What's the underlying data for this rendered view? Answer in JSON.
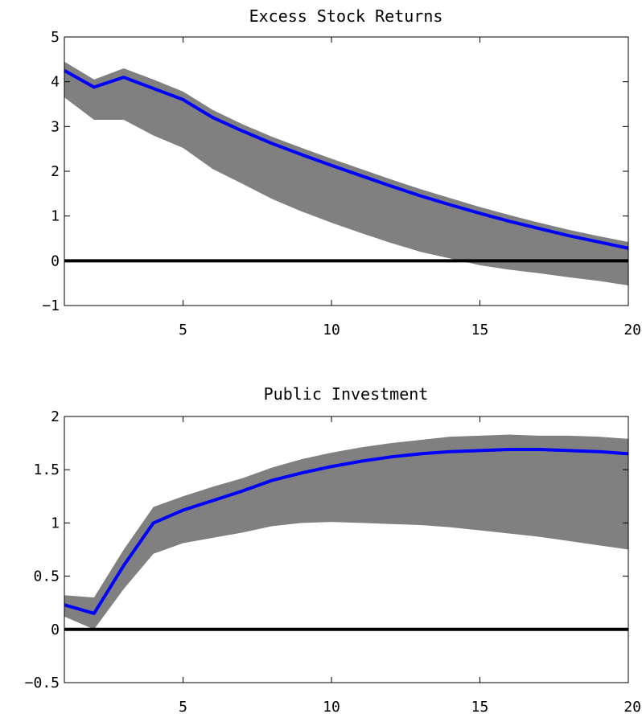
{
  "chart_data": [
    {
      "type": "line",
      "title": "Excess Stock Returns",
      "xlabel": "",
      "ylabel": "",
      "xlim": [
        1,
        20
      ],
      "ylim": [
        -1,
        5
      ],
      "xticks": [
        5,
        10,
        15,
        20
      ],
      "xtick_labels": [
        "5",
        "10",
        "15",
        "20"
      ],
      "yticks": [
        -1,
        0,
        1,
        2,
        3,
        4,
        5
      ],
      "ytick_labels": [
        "−1",
        "0",
        "1",
        "2",
        "3",
        "4",
        "5"
      ],
      "grid": false,
      "x": [
        1,
        2,
        3,
        4,
        5,
        6,
        7,
        8,
        9,
        10,
        11,
        12,
        13,
        14,
        15,
        16,
        17,
        18,
        19,
        20
      ],
      "series": [
        {
          "role": "point-estimate",
          "color": "#0000ff",
          "values": [
            4.25,
            3.88,
            4.1,
            3.85,
            3.6,
            3.2,
            2.9,
            2.62,
            2.37,
            2.13,
            1.9,
            1.67,
            1.45,
            1.25,
            1.06,
            0.88,
            0.72,
            0.56,
            0.42,
            0.28
          ]
        }
      ],
      "band": {
        "color": "#808080",
        "upper": [
          4.45,
          4.05,
          4.3,
          4.05,
          3.78,
          3.37,
          3.05,
          2.77,
          2.52,
          2.28,
          2.05,
          1.82,
          1.6,
          1.4,
          1.2,
          1.02,
          0.85,
          0.69,
          0.55,
          0.42
        ],
        "lower": [
          3.65,
          3.15,
          3.15,
          2.8,
          2.52,
          2.05,
          1.72,
          1.38,
          1.1,
          0.85,
          0.62,
          0.4,
          0.2,
          0.05,
          -0.1,
          -0.2,
          -0.28,
          -0.37,
          -0.45,
          -0.55
        ]
      },
      "zero_line": {
        "y": 0,
        "color": "#000000"
      }
    },
    {
      "type": "line",
      "title": "Public Investment",
      "xlabel": "",
      "ylabel": "",
      "xlim": [
        1,
        20
      ],
      "ylim": [
        -0.5,
        2
      ],
      "xticks": [
        5,
        10,
        15,
        20
      ],
      "xtick_labels": [
        "5",
        "10",
        "15",
        "20"
      ],
      "yticks": [
        -0.5,
        0,
        0.5,
        1,
        1.5,
        2
      ],
      "ytick_labels": [
        "−0.5",
        "0",
        "0.5",
        "1",
        "1.5",
        "2"
      ],
      "grid": false,
      "x": [
        1,
        2,
        3,
        4,
        5,
        6,
        7,
        8,
        9,
        10,
        11,
        12,
        13,
        14,
        15,
        16,
        17,
        18,
        19,
        20
      ],
      "series": [
        {
          "role": "point-estimate",
          "color": "#0000ff",
          "values": [
            0.23,
            0.15,
            0.6,
            1.0,
            1.12,
            1.21,
            1.3,
            1.4,
            1.47,
            1.53,
            1.58,
            1.62,
            1.65,
            1.67,
            1.68,
            1.69,
            1.69,
            1.68,
            1.67,
            1.65
          ]
        }
      ],
      "band": {
        "color": "#808080",
        "upper": [
          0.32,
          0.3,
          0.75,
          1.15,
          1.25,
          1.34,
          1.42,
          1.52,
          1.6,
          1.66,
          1.71,
          1.75,
          1.78,
          1.81,
          1.82,
          1.83,
          1.82,
          1.82,
          1.81,
          1.79
        ],
        "lower": [
          0.12,
          0.0,
          0.38,
          0.71,
          0.81,
          0.86,
          0.91,
          0.97,
          1.0,
          1.01,
          1.0,
          0.99,
          0.98,
          0.96,
          0.93,
          0.9,
          0.87,
          0.83,
          0.79,
          0.75
        ]
      },
      "zero_line": {
        "y": 0,
        "color": "#000000"
      }
    }
  ]
}
